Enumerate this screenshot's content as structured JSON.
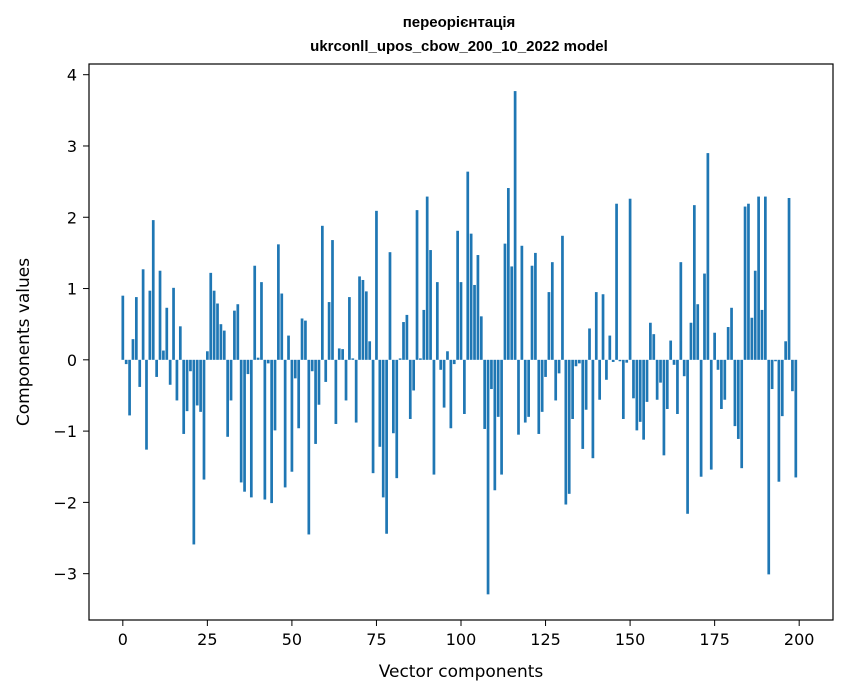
{
  "chart_data": {
    "type": "bar",
    "title": "переорієнтація",
    "subtitle": "ukrconll_upos_cbow_200_10_2022 model",
    "xlabel": "Vector components",
    "ylabel": "Components values",
    "xlim": [
      -10,
      210
    ],
    "ylim": [
      -3.65,
      4.15
    ],
    "xticks": [
      0,
      25,
      50,
      75,
      100,
      125,
      150,
      175,
      200
    ],
    "yticks": [
      -3,
      -2,
      -1,
      0,
      1,
      2,
      3,
      4
    ],
    "ytick_labels": [
      "−3",
      "−2",
      "−1",
      "0",
      "1",
      "2",
      "3",
      "4"
    ],
    "bar_color": "#1f77b4",
    "x": [
      0,
      1,
      2,
      3,
      4,
      5,
      6,
      7,
      8,
      9,
      10,
      11,
      12,
      13,
      14,
      15,
      16,
      17,
      18,
      19,
      20,
      21,
      22,
      23,
      24,
      25,
      26,
      27,
      28,
      29,
      30,
      31,
      32,
      33,
      34,
      35,
      36,
      37,
      38,
      39,
      40,
      41,
      42,
      43,
      44,
      45,
      46,
      47,
      48,
      49,
      50,
      51,
      52,
      53,
      54,
      55,
      56,
      57,
      58,
      59,
      60,
      61,
      62,
      63,
      64,
      65,
      66,
      67,
      68,
      69,
      70,
      71,
      72,
      73,
      74,
      75,
      76,
      77,
      78,
      79,
      80,
      81,
      82,
      83,
      84,
      85,
      86,
      87,
      88,
      89,
      90,
      91,
      92,
      93,
      94,
      95,
      96,
      97,
      98,
      99,
      100,
      101,
      102,
      103,
      104,
      105,
      106,
      107,
      108,
      109,
      110,
      111,
      112,
      113,
      114,
      115,
      116,
      117,
      118,
      119,
      120,
      121,
      122,
      123,
      124,
      125,
      126,
      127,
      128,
      129,
      130,
      131,
      132,
      133,
      134,
      135,
      136,
      137,
      138,
      139,
      140,
      141,
      142,
      143,
      144,
      145,
      146,
      147,
      148,
      149,
      150,
      151,
      152,
      153,
      154,
      155,
      156,
      157,
      158,
      159,
      160,
      161,
      162,
      163,
      164,
      165,
      166,
      167,
      168,
      169,
      170,
      171,
      172,
      173,
      174,
      175,
      176,
      177,
      178,
      179,
      180,
      181,
      182,
      183,
      184,
      185,
      186,
      187,
      188,
      189,
      190,
      191,
      192,
      193,
      194,
      195,
      196,
      197,
      198,
      199
    ],
    "values": [
      0.9,
      -0.06,
      -0.78,
      0.29,
      0.88,
      -0.38,
      1.27,
      -1.26,
      0.97,
      1.96,
      -0.24,
      1.25,
      0.13,
      0.73,
      -0.35,
      1.01,
      -0.57,
      0.47,
      -1.04,
      -0.72,
      -0.16,
      -2.59,
      -0.64,
      -0.73,
      -1.68,
      0.12,
      1.22,
      0.97,
      0.79,
      0.5,
      0.41,
      -1.08,
      -0.57,
      0.69,
      0.78,
      -1.72,
      -1.85,
      -0.2,
      -1.93,
      1.32,
      0.03,
      1.09,
      -1.96,
      -0.05,
      -2.01,
      -0.99,
      1.62,
      0.93,
      -1.79,
      0.34,
      -1.57,
      -0.26,
      -0.96,
      0.58,
      0.55,
      -2.45,
      -0.16,
      -1.18,
      -0.63,
      1.88,
      -0.31,
      0.81,
      1.68,
      -0.9,
      0.16,
      0.15,
      -0.57,
      0.88,
      0.02,
      -0.88,
      1.17,
      1.12,
      0.96,
      0.26,
      -1.59,
      2.09,
      -1.22,
      -1.93,
      -2.44,
      1.51,
      -1.03,
      -1.66,
      0.02,
      0.53,
      0.63,
      -0.83,
      -0.43,
      2.1,
      0.02,
      0.7,
      2.29,
      1.54,
      -1.61,
      1.09,
      -0.14,
      -0.67,
      0.12,
      -0.96,
      -0.06,
      1.81,
      1.09,
      -0.76,
      2.64,
      1.77,
      1.05,
      1.47,
      0.61,
      -0.97,
      -3.29,
      -0.41,
      -1.83,
      -0.8,
      -1.61,
      1.63,
      2.41,
      1.31,
      3.77,
      -1.05,
      1.6,
      -0.88,
      -0.8,
      1.32,
      1.5,
      -1.04,
      -0.73,
      -0.24,
      0.95,
      1.37,
      -0.57,
      -0.19,
      1.74,
      -2.03,
      -1.88,
      -0.83,
      -0.09,
      -0.05,
      -1.25,
      -0.7,
      0.44,
      -1.38,
      0.95,
      -0.56,
      0.92,
      -0.28,
      0.34,
      -0.03,
      2.19,
      -0.02,
      -0.83,
      -0.04,
      2.26,
      -0.54,
      -0.99,
      -0.87,
      -1.12,
      -0.59,
      0.52,
      0.36,
      -0.56,
      -0.32,
      -1.34,
      -0.69,
      0.27,
      -0.07,
      -0.76,
      1.37,
      -0.23,
      -2.16,
      0.52,
      2.17,
      0.78,
      -1.64,
      1.21,
      2.9,
      -1.54,
      0.38,
      -0.14,
      -0.69,
      -0.56,
      0.46,
      0.73,
      -0.93,
      -1.11,
      -1.52,
      2.15,
      2.19,
      0.59,
      1.25,
      2.29,
      0.7,
      2.29,
      -3.01,
      -0.41,
      -0.02,
      -1.71,
      -0.79,
      0.26,
      2.27,
      -0.44,
      -1.65
    ]
  }
}
